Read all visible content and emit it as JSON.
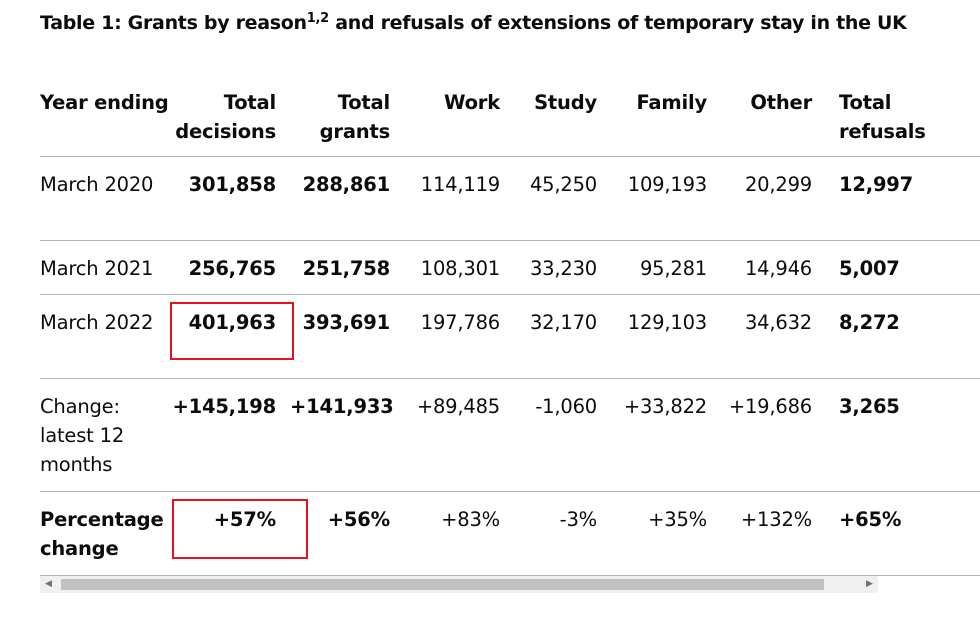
{
  "title": {
    "main": "Table 1: Grants by reason",
    "superscript": "1,2",
    "rest": " and refusals of extensions of temporary stay in the UK"
  },
  "table": {
    "headers": [
      "Year ending",
      "Total decisions",
      "Total grants",
      "Work",
      "Study",
      "Family",
      "Other",
      "Total refusals"
    ],
    "rows": [
      {
        "label": "March 2020",
        "values": [
          "301,858",
          "288,861",
          "114,119",
          "45,250",
          "109,193",
          "20,299",
          "12,997"
        ]
      },
      {
        "label": "March 2021",
        "values": [
          "256,765",
          "251,758",
          "108,301",
          "33,230",
          "95,281",
          "14,946",
          "5,007"
        ]
      },
      {
        "label": "March 2022",
        "values": [
          "401,963",
          "393,691",
          "197,786",
          "32,170",
          "129,103",
          "34,632",
          "8,272"
        ]
      },
      {
        "label": "Change: latest 12 months",
        "values": [
          "+145,198",
          "+141,933",
          "+89,485",
          "-1,060",
          "+33,822",
          "+19,686",
          "3,265"
        ]
      },
      {
        "label": "Percentage change",
        "values": [
          "+57%",
          "+56%",
          "+83%",
          "-3%",
          "+35%",
          "+132%",
          "+65%"
        ]
      }
    ]
  },
  "highlight_color": "#e8101d",
  "icons": {
    "scroll_left": "triangle-left-icon",
    "scroll_right": "triangle-right-icon"
  }
}
